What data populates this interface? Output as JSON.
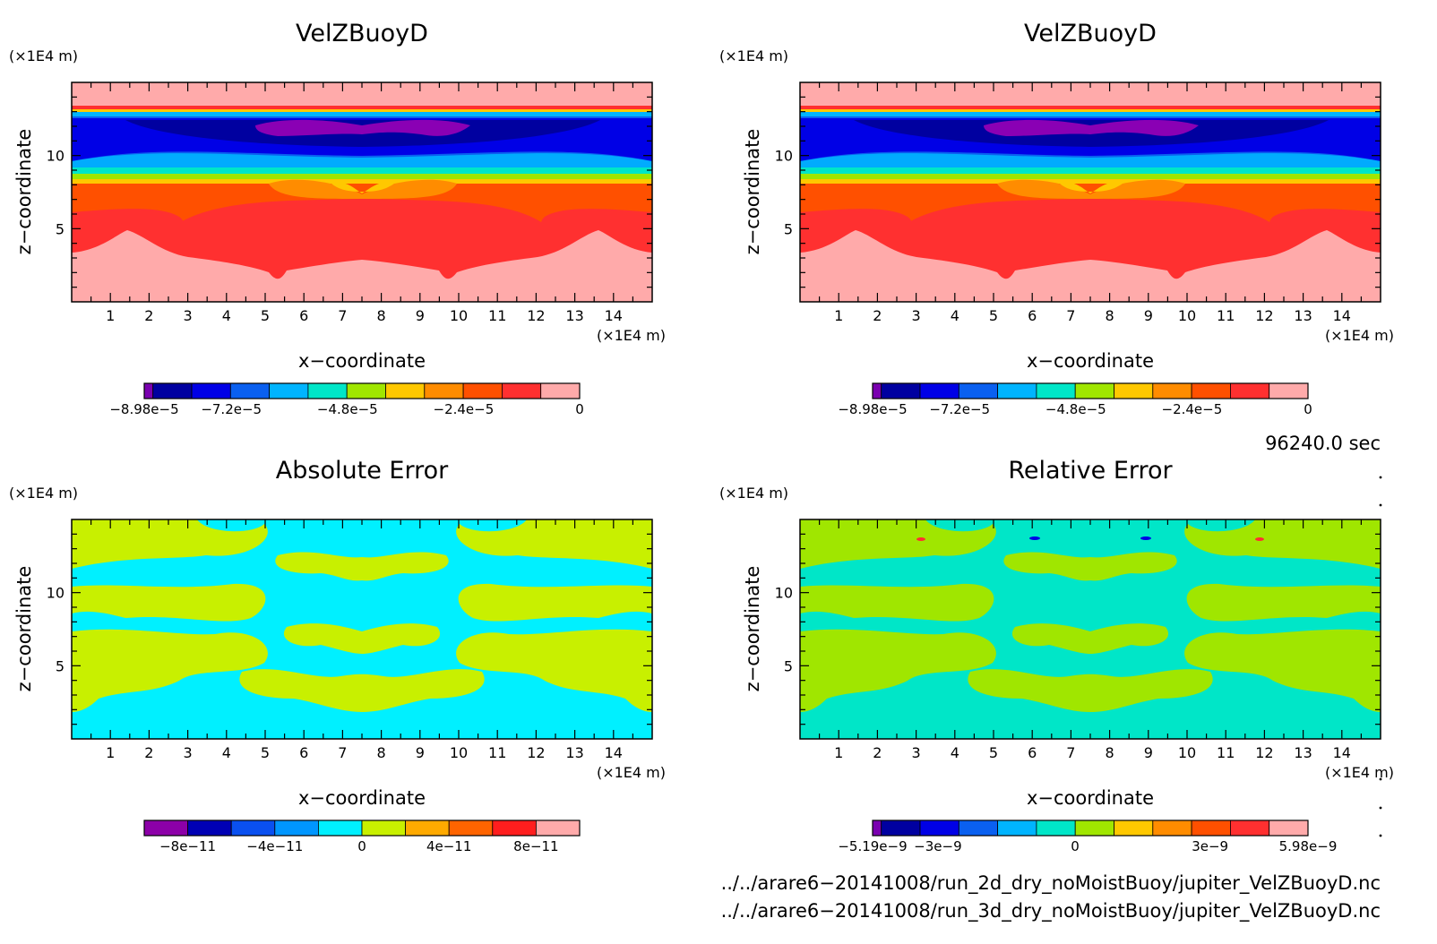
{
  "panels": [
    {
      "id": "top-left",
      "title": "VelZBuoyD",
      "ylabel": "z−coordinate",
      "xlabel": "x−coordinate",
      "y_unit": "(×1E4 m)",
      "x_unit": "(×1E4 m)",
      "x_ticks": [
        "1",
        "2",
        "3",
        "4",
        "5",
        "6",
        "7",
        "8",
        "9",
        "10",
        "11",
        "12",
        "13",
        "14"
      ],
      "y_ticks": [
        "5",
        "10"
      ],
      "colorbar_colors": [
        "#7a00b0",
        "#0000a0",
        "#0000e6",
        "#0a60f0",
        "#00b4ff",
        "#00e6c8",
        "#a0e600",
        "#ffc800",
        "#ff8c00",
        "#ff5000",
        "#ff3030",
        "#ffaaaa"
      ],
      "colorbar_labels": [
        "−8.98e−5",
        "−7.2e−5",
        "−4.8e−5",
        "−2.4e−5",
        "0"
      ],
      "colorbar_label_positions": [
        0,
        0.2,
        0.4667,
        0.7333,
        1.0
      ]
    },
    {
      "id": "top-right",
      "title": "VelZBuoyD",
      "ylabel": "z−coordinate",
      "xlabel": "x−coordinate",
      "y_unit": "(×1E4 m)",
      "x_unit": "(×1E4 m)",
      "x_ticks": [
        "1",
        "2",
        "3",
        "4",
        "5",
        "6",
        "7",
        "8",
        "9",
        "10",
        "11",
        "12",
        "13",
        "14"
      ],
      "y_ticks": [
        "5",
        "10"
      ],
      "colorbar_colors": [
        "#7a00b0",
        "#0000a0",
        "#0000e6",
        "#0a60f0",
        "#00b4ff",
        "#00e6c8",
        "#a0e600",
        "#ffc800",
        "#ff8c00",
        "#ff5000",
        "#ff3030",
        "#ffaaaa"
      ],
      "colorbar_labels": [
        "−8.98e−5",
        "−7.2e−5",
        "−4.8e−5",
        "−2.4e−5",
        "0"
      ],
      "colorbar_label_positions": [
        0,
        0.2,
        0.4667,
        0.7333,
        1.0
      ]
    },
    {
      "id": "bottom-left",
      "title": "Absolute Error",
      "ylabel": "z−coordinate",
      "xlabel": "x−coordinate",
      "y_unit": "(×1E4 m)",
      "x_unit": "(×1E4 m)",
      "x_ticks": [
        "1",
        "2",
        "3",
        "4",
        "5",
        "6",
        "7",
        "8",
        "9",
        "10",
        "11",
        "12",
        "13",
        "14"
      ],
      "y_ticks": [
        "5",
        "10"
      ],
      "colorbar_colors": [
        "#8c00a8",
        "#0000b4",
        "#0a50f0",
        "#0096ff",
        "#00f0ff",
        "#c8f000",
        "#ffaa00",
        "#ff6400",
        "#ff1e1e",
        "#ffaaaa"
      ],
      "colorbar_labels": [
        "−8e−11",
        "−4e−11",
        "0",
        "4e−11",
        "8e−11"
      ],
      "colorbar_label_positions": [
        0.1,
        0.3,
        0.5,
        0.7,
        0.9
      ]
    },
    {
      "id": "bottom-right",
      "title": "Relative Error",
      "ylabel": "z−coordinate",
      "xlabel": "x−coordinate",
      "y_unit": "(×1E4 m)",
      "x_unit": "(×1E4 m)",
      "x_ticks": [
        "1",
        "2",
        "3",
        "4",
        "5",
        "6",
        "7",
        "8",
        "9",
        "10",
        "11",
        "12",
        "13",
        "14"
      ],
      "y_ticks": [
        "5",
        "10"
      ],
      "colorbar_colors": [
        "#7a00b0",
        "#0000a0",
        "#0000e6",
        "#0a60f0",
        "#00b4ff",
        "#00e6c8",
        "#a0e600",
        "#ffc800",
        "#ff8c00",
        "#ff5000",
        "#ff3030",
        "#ffaaaa"
      ],
      "colorbar_labels": [
        "−5.19e−9",
        "−3e−9",
        "0",
        "3e−9",
        "5.98e−9"
      ],
      "colorbar_label_positions": [
        0,
        0.15,
        0.465,
        0.775,
        1.0
      ]
    }
  ],
  "time_label": "96240.0 sec",
  "file_lines": [
    "../../arare6−20141008/run_2d_dry_noMoistBuoy/jupiter_VelZBuoyD.nc",
    "../../arare6−20141008/run_3d_dry_noMoistBuoy/jupiter_VelZBuoyD.nc"
  ],
  "chart_data": [
    {
      "type": "heatmap",
      "title": "VelZBuoyD",
      "xlabel": "x−coordinate",
      "ylabel": "z−coordinate",
      "x_unit": "×1E4 m",
      "y_unit": "×1E4 m",
      "xlim": [
        0,
        15
      ],
      "ylim": [
        0,
        15
      ],
      "color_range": [
        -8.98e-05,
        0
      ],
      "colorbar_ticks": [
        -8.98e-05,
        -7.2e-05,
        -4.8e-05,
        -2.4e-05,
        0
      ],
      "bands": [
        {
          "z_range": [
            12.8,
            15
          ],
          "level": "0"
        },
        {
          "z_range": [
            12.3,
            12.8
          ],
          "level": "-0.5e-5 to -2.4e-5"
        },
        {
          "z_range": [
            10.0,
            12.0
          ],
          "level": "-8e-5 to -8.98e-5 (minimum near x=7.7, z=11.8)"
        },
        {
          "z_range": [
            8.5,
            10.0
          ],
          "level": "-6e-5 to -4.8e-5"
        },
        {
          "z_range": [
            7.0,
            8.5
          ],
          "level": "-1.5e-5 to -2.4e-5"
        },
        {
          "z_range": [
            0,
            7.0
          ],
          "level": "-0.5e-5 to 0"
        }
      ]
    },
    {
      "type": "heatmap",
      "title": "VelZBuoyD",
      "xlabel": "x−coordinate",
      "ylabel": "z−coordinate",
      "x_unit": "×1E4 m",
      "y_unit": "×1E4 m",
      "xlim": [
        0,
        15
      ],
      "ylim": [
        0,
        15
      ],
      "color_range": [
        -8.98e-05,
        0
      ],
      "colorbar_ticks": [
        -8.98e-05,
        -7.2e-05,
        -4.8e-05,
        -2.4e-05,
        0
      ]
    },
    {
      "type": "heatmap",
      "title": "Absolute Error",
      "xlabel": "x−coordinate",
      "ylabel": "z−coordinate",
      "x_unit": "×1E4 m",
      "y_unit": "×1E4 m",
      "xlim": [
        0,
        15
      ],
      "ylim": [
        0,
        15
      ],
      "color_range": [
        -1e-10,
        1e-10
      ],
      "colorbar_ticks": [
        -8e-11,
        -4e-11,
        0,
        4e-11,
        8e-11
      ]
    },
    {
      "type": "heatmap",
      "title": "Relative Error",
      "xlabel": "x−coordinate",
      "ylabel": "z−coordinate",
      "x_unit": "×1E4 m",
      "y_unit": "×1E4 m",
      "xlim": [
        0,
        15
      ],
      "ylim": [
        0,
        15
      ],
      "color_range": [
        -5.19e-09,
        5.98e-09
      ],
      "colorbar_ticks": [
        -5.19e-09,
        -3e-09,
        0,
        3e-09,
        5.98e-09
      ]
    }
  ]
}
